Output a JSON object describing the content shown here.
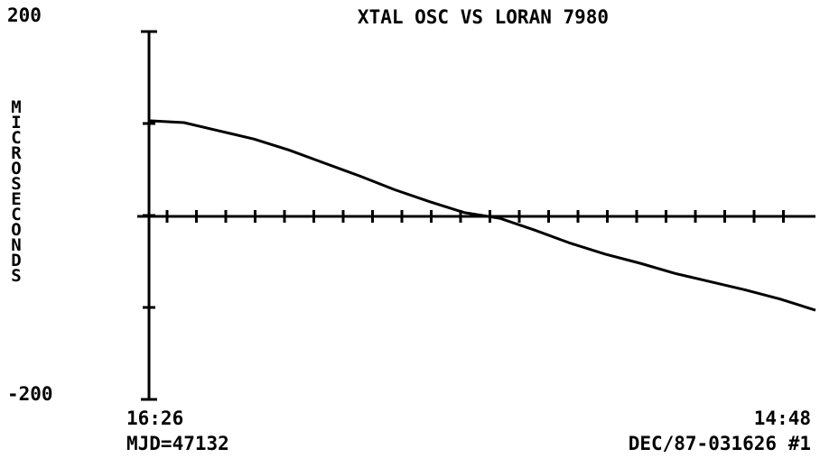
{
  "chart_data": {
    "type": "line",
    "title": "XTAL OSC VS LORAN 7980",
    "ylabel": "MICROSECONDS",
    "ylim": [
      -200,
      200
    ],
    "yticks": [
      -200,
      200
    ],
    "yminor": [
      -100,
      0,
      100
    ],
    "x_start_label": "16:26",
    "x_end_label": "14:48",
    "footer_left": "MJD=47132",
    "footer_right": "DEC/87-031626 #1",
    "color": "#000000",
    "values": [
      103,
      101,
      92,
      83,
      71,
      57,
      43,
      28,
      15,
      3,
      -3,
      -16,
      -30,
      -42,
      -52,
      -63,
      -72,
      -81,
      -91,
      -103
    ]
  }
}
